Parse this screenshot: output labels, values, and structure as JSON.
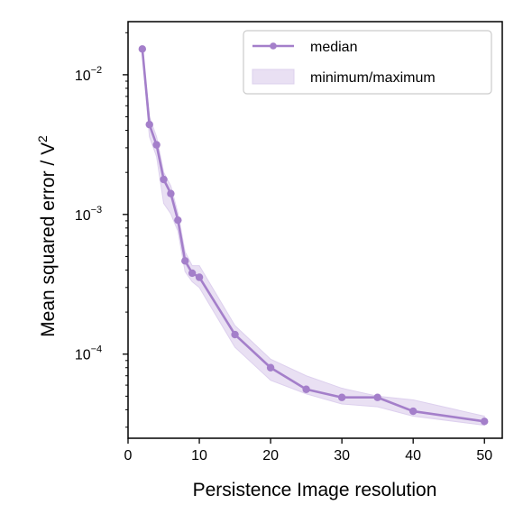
{
  "chart_data": {
    "type": "line",
    "xlabel": "Persistence Image resolution",
    "ylabel": "Mean squared error / V",
    "ylabel_superscript": "2",
    "yscale": "log",
    "xlim": [
      0,
      52.5
    ],
    "ylim": [
      2.5e-05,
      0.024
    ],
    "xticks": [
      0,
      10,
      20,
      30,
      40,
      50
    ],
    "yticks": [
      {
        "value": 0.01,
        "base": "10",
        "exponent": "−2"
      },
      {
        "value": 0.001,
        "base": "10",
        "exponent": "−3"
      },
      {
        "value": 0.0001,
        "base": "10",
        "exponent": "−4"
      }
    ],
    "grid": false,
    "legend_placement": "top-right",
    "colors": {
      "median": "#a47fca",
      "band": "#e9e0f3"
    },
    "series": [
      {
        "name": "median",
        "x": [
          2,
          3,
          4,
          5,
          6,
          7,
          8,
          9,
          10,
          15,
          20,
          25,
          30,
          35,
          40,
          50
        ],
        "values": [
          0.0153,
          0.0044,
          0.00315,
          0.00178,
          0.00141,
          0.00091,
          0.000465,
          0.00038,
          0.000355,
          0.000138,
          8e-05,
          5.6e-05,
          4.9e-05,
          4.9e-05,
          3.9e-05,
          3.3e-05
        ]
      },
      {
        "name": "minimum/maximum",
        "x": [
          2,
          3,
          4,
          5,
          6,
          7,
          8,
          9,
          10,
          15,
          20,
          25,
          30,
          35,
          40,
          50
        ],
        "lower": [
          0.0146,
          0.0036,
          0.0026,
          0.0012,
          0.00101,
          0.00076,
          0.00039,
          0.00033,
          0.0003,
          0.000112,
          6.5e-05,
          5.2e-05,
          4.4e-05,
          4.2e-05,
          3.6e-05,
          3.1e-05
        ],
        "upper": [
          0.016,
          0.005,
          0.0036,
          0.002,
          0.0016,
          0.00102,
          0.00054,
          0.00043,
          0.00043,
          0.00016,
          9.2e-05,
          7e-05,
          5.7e-05,
          5e-05,
          4.7e-05,
          3.6e-05
        ]
      }
    ]
  }
}
